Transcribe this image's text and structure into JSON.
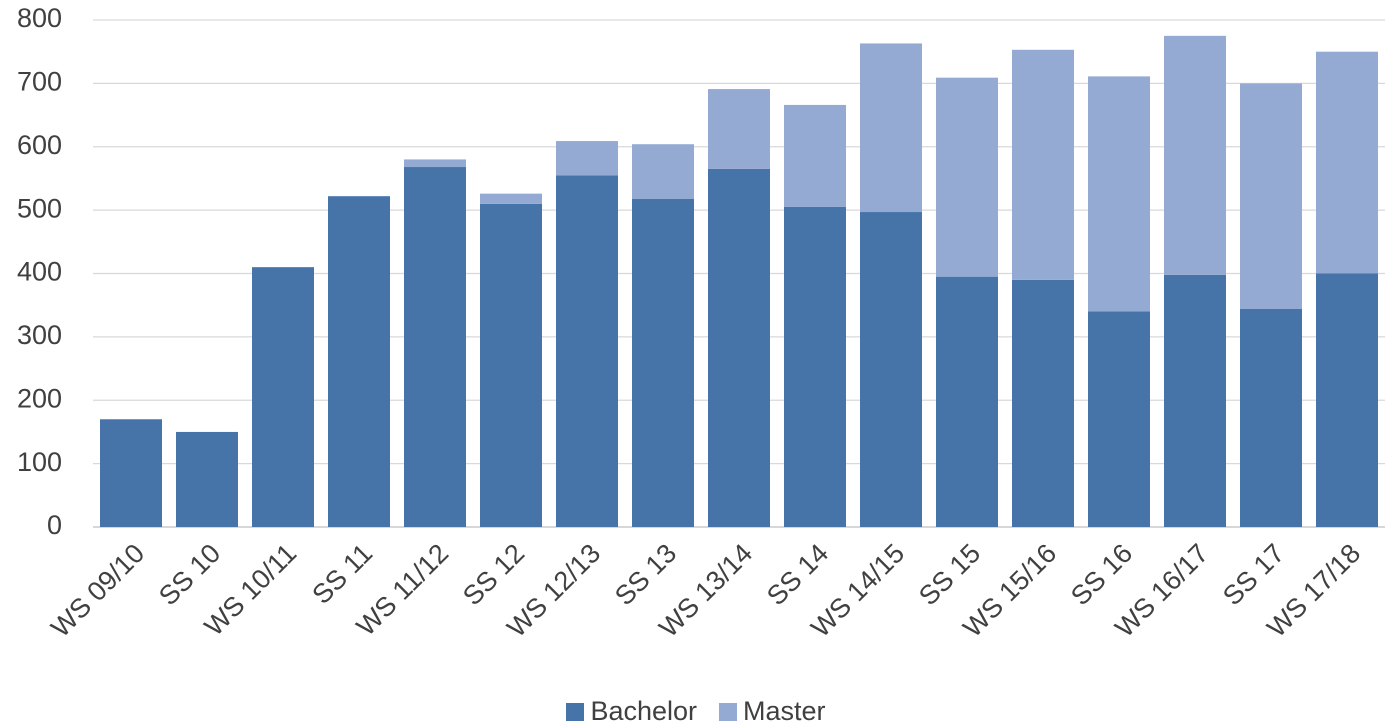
{
  "chart_data": {
    "type": "bar",
    "stacked": true,
    "title": "",
    "xlabel": "",
    "ylabel": "",
    "ylim": [
      0,
      800
    ],
    "yticks": [
      0,
      100,
      200,
      300,
      400,
      500,
      600,
      700,
      800
    ],
    "grid": true,
    "legend_position": "bottom",
    "categories": [
      "WS 09/10",
      "SS 10",
      "WS 10/11",
      "SS 11",
      "WS 11/12",
      "SS 12",
      "WS 12/13",
      "SS 13",
      "WS 13/14",
      "SS 14",
      "WS 14/15",
      "SS 15",
      "WS 15/16",
      "SS 16",
      "WS 16/17",
      "SS 17",
      "WS 17/18"
    ],
    "series": [
      {
        "name": "Bachelor",
        "color": "#4674A9",
        "values": [
          170,
          150,
          410,
          522,
          568,
          510,
          555,
          518,
          565,
          505,
          497,
          395,
          390,
          340,
          398,
          344,
          400
        ]
      },
      {
        "name": "Master",
        "color": "#94AAD2",
        "values": [
          0,
          0,
          0,
          0,
          12,
          16,
          54,
          86,
          126,
          161,
          266,
          314,
          363,
          371,
          377,
          356,
          350
        ]
      }
    ]
  }
}
